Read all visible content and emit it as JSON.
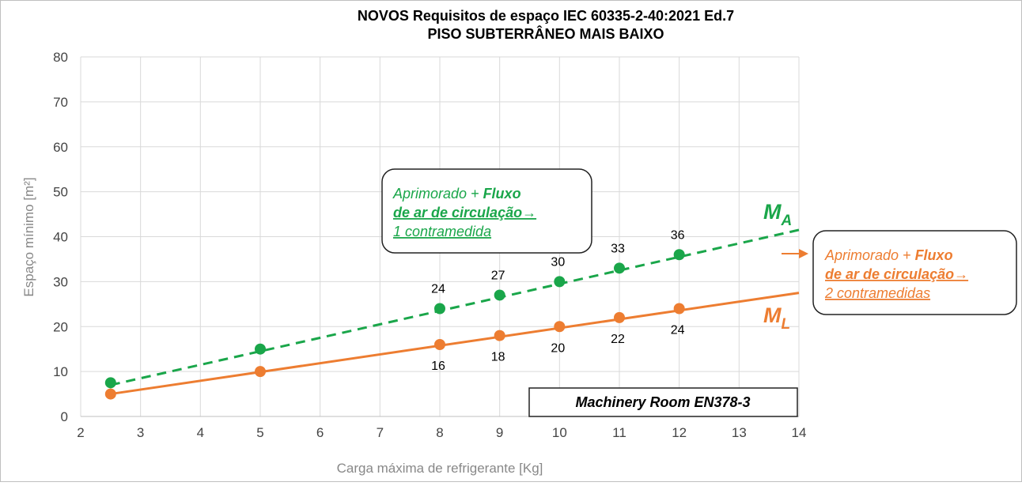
{
  "chart_data": {
    "type": "line",
    "title": [
      "NOVOS Requisitos de espaço IEC 60335-2-40:2021 Ed.7",
      "PISO SUBTERRÂNEO MAIS BAIXO"
    ],
    "xlabel": "Carga máxima de refrigerante [Kg]",
    "ylabel": "Espaço mínimo [m²]",
    "xlim": [
      2,
      14
    ],
    "ylim": [
      0,
      80
    ],
    "xticks": [
      2,
      3,
      4,
      5,
      6,
      7,
      8,
      9,
      10,
      11,
      12,
      13,
      14
    ],
    "yticks": [
      0,
      10,
      20,
      30,
      40,
      50,
      60,
      70,
      80
    ],
    "grid": true,
    "series": [
      {
        "name": "M",
        "subscript": "A",
        "color": "#1aa64a",
        "dashed": true,
        "x": [
          2.5,
          5,
          8,
          9,
          10,
          11,
          12
        ],
        "values": [
          7.5,
          15,
          24,
          27,
          30,
          33,
          36
        ],
        "value_labels": [
          null,
          null,
          24,
          27,
          30,
          33,
          36
        ],
        "trend": {
          "x": [
            2.5,
            14
          ],
          "values": [
            7,
            41.5
          ]
        }
      },
      {
        "name": "M",
        "subscript": "L",
        "color": "#ed7d31",
        "dashed": false,
        "x": [
          2.5,
          5,
          8,
          9,
          10,
          11,
          12
        ],
        "values": [
          5,
          10,
          16,
          18,
          20,
          22,
          24
        ],
        "value_labels": [
          null,
          null,
          16,
          18,
          20,
          22,
          24
        ],
        "trend": {
          "x": [
            2.5,
            14
          ],
          "values": [
            5,
            27.5
          ]
        }
      }
    ],
    "annotations": [
      {
        "lines": [
          [
            "Aprimorado  + ",
            "Fluxo"
          ],
          [
            "de ar de circulação→"
          ],
          [
            "1 contramedida"
          ]
        ],
        "color": "#1aa64a"
      },
      {
        "lines": [
          [
            "Aprimorado  + ",
            "Fluxo"
          ],
          [
            "de ar de circulação→"
          ],
          [
            "2 contramedidas"
          ]
        ],
        "color": "#ed7d31"
      },
      {
        "text": "Machinery Room EN378-3"
      }
    ]
  }
}
